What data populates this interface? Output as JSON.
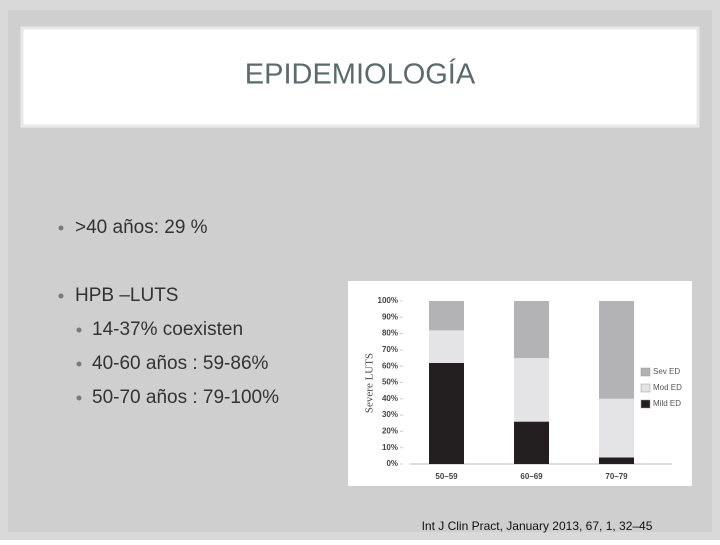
{
  "slide": {
    "title": "EPIDEMIOLOGÍA",
    "bullets": [
      ">40 años:  29 %",
      "HPB –LUTS"
    ],
    "sub_bullets": [
      "14-37% coexisten",
      "40-60 años : 59-86%",
      "50-70 años : 79-100%"
    ],
    "citation": "Int J Clin Pract, January 2013, 67, 1, 32–45"
  },
  "chart_data": {
    "type": "stacked_bar",
    "y_label": "Severe LUTS",
    "categories": [
      "50–59",
      "60–69",
      "70–79"
    ],
    "series": [
      {
        "name": "Mild ED",
        "color": "#231f20",
        "values": [
          62,
          26,
          4
        ]
      },
      {
        "name": "Mod ED",
        "color": "#e4e4e6",
        "values": [
          20,
          39,
          36
        ]
      },
      {
        "name": "Sev ED",
        "color": "#b3b3b5",
        "values": [
          18,
          35,
          60
        ]
      }
    ],
    "ylim": [
      0,
      100
    ],
    "yticks": [
      {
        "value": 0,
        "label": "0%"
      },
      {
        "value": 10,
        "label": "10%"
      },
      {
        "value": 20,
        "label": "20%"
      },
      {
        "value": 30,
        "label": "30%"
      },
      {
        "value": 40,
        "label": "40%"
      },
      {
        "value": 50,
        "label": "50%"
      },
      {
        "value": 60,
        "label": "60%"
      },
      {
        "value": 70,
        "label": "70%"
      },
      {
        "value": 80,
        "label": "80%"
      },
      {
        "value": 90,
        "label": "90%"
      },
      {
        "value": 100,
        "label": "100%"
      }
    ]
  }
}
